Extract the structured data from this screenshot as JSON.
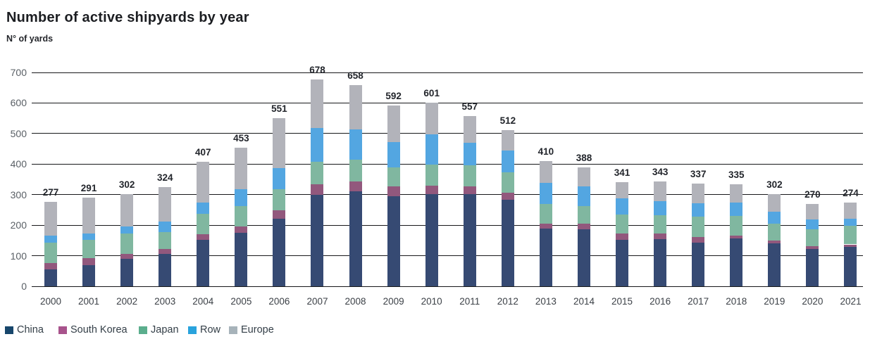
{
  "title": "Number of active shipyards by year",
  "y_axis_title": "N° of yards",
  "chart_data": {
    "type": "bar",
    "stacked": true,
    "title": "Number of active shipyards by year",
    "ylabel": "N° of yards",
    "xlabel": "",
    "ylim": [
      0,
      700
    ],
    "ytick_step": 100,
    "grid": true,
    "legend_position": "bottom-left",
    "categories": [
      "2000",
      "2001",
      "2002",
      "2003",
      "2004",
      "2005",
      "2006",
      "2007",
      "2008",
      "2009",
      "2010",
      "2011",
      "2012",
      "2013",
      "2014",
      "2015",
      "2016",
      "2017",
      "2018",
      "2019",
      "2020",
      "2021"
    ],
    "series": [
      {
        "name": "China",
        "color": "#364a73",
        "legend_color": "#17466b",
        "values": [
          55,
          68,
          89,
          106,
          152,
          176,
          220,
          299,
          310,
          295,
          301,
          302,
          284,
          189,
          187,
          151,
          155,
          143,
          156,
          141,
          122,
          128
        ]
      },
      {
        "name": "South Korea",
        "color": "#92587d",
        "legend_color": "#a8538c",
        "values": [
          21,
          23,
          17,
          15,
          19,
          20,
          29,
          34,
          33,
          31,
          29,
          24,
          23,
          17,
          18,
          21,
          17,
          19,
          10,
          8,
          10,
          9
        ]
      },
      {
        "name": "Japan",
        "color": "#80b7a0",
        "legend_color": "#5bae8d",
        "values": [
          67,
          62,
          66,
          56,
          66,
          67,
          69,
          74,
          71,
          64,
          69,
          71,
          65,
          64,
          58,
          62,
          61,
          66,
          64,
          56,
          55,
          62
        ]
      },
      {
        "name": "Row",
        "color": "#53a6e1",
        "legend_color": "#29a3dd",
        "values": [
          22,
          20,
          23,
          35,
          38,
          54,
          69,
          110,
          100,
          81,
          98,
          73,
          72,
          69,
          63,
          54,
          45,
          44,
          45,
          38,
          31,
          23
        ]
      },
      {
        "name": "Europe",
        "color": "#b2b3ba",
        "legend_color": "#a7b3ba",
        "values": [
          112,
          118,
          107,
          112,
          132,
          136,
          164,
          161,
          144,
          121,
          104,
          87,
          68,
          71,
          62,
          53,
          65,
          65,
          60,
          59,
          52,
          52
        ]
      }
    ],
    "totals": [
      277,
      291,
      302,
      324,
      407,
      453,
      551,
      678,
      658,
      592,
      601,
      557,
      512,
      410,
      388,
      341,
      343,
      337,
      335,
      302,
      270,
      274
    ]
  }
}
